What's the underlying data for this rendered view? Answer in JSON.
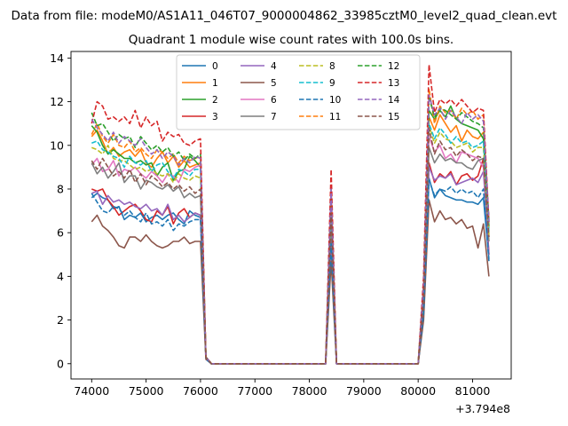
{
  "figure": {
    "suptitle": "Data from file: modeM0/AS1A11_046T07_9000004862_33985cztM0_level2_quad_clean.evt"
  },
  "chart_data": {
    "type": "line",
    "title": "Quadrant 1 module wise count rates with 100.0s bins.",
    "xlabel": "",
    "ylabel": "",
    "x_offset_label": "+3.794e8",
    "xlim": [
      73620,
      81710
    ],
    "ylim": [
      -0.7,
      14.3
    ],
    "xticks": [
      74000,
      75000,
      76000,
      77000,
      78000,
      79000,
      80000,
      81000
    ],
    "yticks": [
      0,
      2,
      4,
      6,
      8,
      10,
      12,
      14
    ],
    "legend_position": "upper center",
    "legend_columns": 4,
    "grid": false,
    "x": [
      74000,
      74100,
      74200,
      74300,
      74400,
      74500,
      74600,
      74700,
      74800,
      74900,
      75000,
      75100,
      75200,
      75300,
      75400,
      75500,
      75600,
      75700,
      75800,
      75900,
      76000,
      76100,
      76200,
      76300,
      78200,
      78300,
      78400,
      78500,
      80000,
      80100,
      80200,
      80300,
      80400,
      80500,
      80600,
      80700,
      80800,
      80900,
      81000,
      81100,
      81200,
      81300
    ],
    "series": [
      {
        "name": "0",
        "color": "#1f77b4",
        "style": "solid",
        "values": [
          7.6,
          7.8,
          7.6,
          7.5,
          7.1,
          7.2,
          6.6,
          6.8,
          6.7,
          6.9,
          6.5,
          6.7,
          6.8,
          6.6,
          6.8,
          6.9,
          6.6,
          6.4,
          7.0,
          6.8,
          6.7,
          0.3,
          0.0,
          0.0,
          0.0,
          0.0,
          5.8,
          0.0,
          0.0,
          2.4,
          8.5,
          7.6,
          8.0,
          7.7,
          7.6,
          7.5,
          7.5,
          7.4,
          7.4,
          7.3,
          7.6,
          4.8
        ]
      },
      {
        "name": "1",
        "color": "#ff7f0e",
        "style": "solid",
        "values": [
          10.4,
          10.7,
          10.2,
          9.6,
          9.9,
          9.5,
          9.7,
          9.8,
          9.5,
          9.8,
          9.2,
          9.0,
          9.4,
          9.7,
          9.2,
          9.5,
          9.0,
          9.3,
          9.0,
          9.1,
          9.2,
          0.3,
          0.0,
          0.0,
          0.0,
          0.0,
          7.4,
          0.0,
          0.0,
          3.4,
          11.3,
          10.7,
          11.4,
          11.0,
          10.6,
          10.9,
          10.2,
          10.7,
          10.4,
          10.3,
          10.6,
          6.2
        ]
      },
      {
        "name": "2",
        "color": "#2ca02c",
        "style": "solid",
        "values": [
          10.9,
          10.6,
          10.0,
          9.6,
          9.8,
          9.6,
          9.4,
          9.4,
          9.2,
          9.3,
          9.1,
          9.2,
          8.6,
          9.0,
          9.2,
          8.4,
          8.8,
          8.9,
          9.5,
          9.3,
          9.0,
          0.3,
          0.0,
          0.0,
          0.0,
          0.0,
          7.6,
          0.0,
          0.0,
          3.5,
          11.6,
          11.2,
          11.6,
          11.3,
          11.8,
          11.2,
          11.0,
          10.9,
          10.8,
          10.7,
          10.3,
          6.3
        ]
      },
      {
        "name": "3",
        "color": "#d62728",
        "style": "solid",
        "values": [
          8.0,
          7.9,
          8.0,
          7.5,
          7.2,
          6.8,
          7.0,
          7.2,
          7.3,
          7.0,
          6.6,
          6.5,
          7.0,
          6.8,
          7.2,
          6.4,
          6.9,
          7.1,
          6.7,
          6.9,
          6.8,
          0.3,
          0.0,
          0.0,
          0.0,
          0.0,
          5.9,
          0.0,
          0.0,
          2.6,
          9.2,
          8.3,
          8.7,
          8.5,
          8.8,
          8.2,
          8.6,
          8.7,
          8.4,
          8.6,
          9.4,
          5.0
        ]
      },
      {
        "name": "4",
        "color": "#9467bd",
        "style": "solid",
        "values": [
          7.8,
          7.9,
          7.3,
          7.7,
          7.4,
          7.5,
          7.3,
          7.4,
          7.2,
          7.1,
          7.3,
          7.0,
          7.1,
          6.8,
          7.3,
          6.6,
          6.8,
          6.5,
          6.7,
          6.9,
          6.8,
          0.3,
          0.0,
          0.0,
          0.0,
          0.0,
          6.0,
          0.0,
          0.0,
          2.6,
          9.0,
          8.4,
          8.6,
          8.5,
          8.7,
          8.2,
          8.3,
          8.4,
          8.5,
          8.3,
          8.8,
          5.0
        ]
      },
      {
        "name": "5",
        "color": "#8c564b",
        "style": "solid",
        "values": [
          6.5,
          6.8,
          6.3,
          6.1,
          5.8,
          5.4,
          5.3,
          5.8,
          5.8,
          5.6,
          5.9,
          5.6,
          5.4,
          5.3,
          5.4,
          5.6,
          5.6,
          5.8,
          5.5,
          5.6,
          5.6,
          0.2,
          0.0,
          0.0,
          0.0,
          0.0,
          4.7,
          0.0,
          0.0,
          2.0,
          7.5,
          6.5,
          7.0,
          6.6,
          6.7,
          6.4,
          6.6,
          6.2,
          6.3,
          5.3,
          6.4,
          4.0
        ]
      },
      {
        "name": "6",
        "color": "#e377c2",
        "style": "solid",
        "values": [
          9.1,
          9.4,
          8.8,
          8.9,
          9.3,
          8.6,
          8.9,
          8.8,
          9.0,
          8.7,
          8.5,
          8.8,
          8.6,
          8.3,
          8.7,
          8.6,
          8.3,
          8.9,
          8.8,
          9.0,
          9.1,
          0.3,
          0.0,
          0.0,
          0.0,
          0.0,
          7.0,
          0.0,
          0.0,
          3.1,
          10.4,
          9.7,
          10.0,
          9.4,
          9.6,
          9.2,
          9.7,
          9.6,
          9.5,
          9.4,
          9.0,
          5.8
        ]
      },
      {
        "name": "7",
        "color": "#7f7f7f",
        "style": "solid",
        "values": [
          9.2,
          8.7,
          9.0,
          8.5,
          8.8,
          9.2,
          8.3,
          8.6,
          8.6,
          8.0,
          8.4,
          8.3,
          8.1,
          8.0,
          8.2,
          7.9,
          8.1,
          7.6,
          7.8,
          7.6,
          7.7,
          0.3,
          0.0,
          0.0,
          0.0,
          0.0,
          6.7,
          0.0,
          0.0,
          2.9,
          9.9,
          9.2,
          9.6,
          9.3,
          9.4,
          9.2,
          9.2,
          9.0,
          8.9,
          9.3,
          9.4,
          5.6
        ]
      },
      {
        "name": "8",
        "color": "#bcbd22",
        "style": "dashed",
        "values": [
          9.9,
          9.8,
          9.6,
          10.0,
          9.4,
          9.3,
          9.3,
          9.1,
          8.9,
          9.0,
          8.8,
          8.9,
          8.7,
          8.6,
          8.7,
          8.3,
          8.7,
          8.5,
          8.4,
          8.6,
          8.5,
          0.3,
          0.0,
          0.0,
          0.0,
          0.0,
          7.2,
          0.0,
          0.0,
          3.2,
          10.9,
          10.1,
          10.6,
          10.3,
          10.2,
          9.9,
          10.0,
          10.1,
          9.7,
          9.9,
          9.9,
          5.9
        ]
      },
      {
        "name": "9",
        "color": "#17becf",
        "style": "dashed",
        "values": [
          10.1,
          10.2,
          9.8,
          9.7,
          9.5,
          9.4,
          9.0,
          9.5,
          9.2,
          9.1,
          9.3,
          8.8,
          9.1,
          9.2,
          8.8,
          8.5,
          8.9,
          8.8,
          8.6,
          8.9,
          8.9,
          0.3,
          0.0,
          0.0,
          0.0,
          0.0,
          7.3,
          0.0,
          0.0,
          3.3,
          11.0,
          10.3,
          10.8,
          10.5,
          10.1,
          10.4,
          10.1,
          10.2,
          9.9,
          10.0,
          10.2,
          6.0
        ]
      },
      {
        "name": "10",
        "color": "#1f77b4",
        "style": "dashed",
        "values": [
          7.8,
          7.4,
          7.0,
          6.9,
          7.2,
          7.1,
          6.8,
          7.0,
          6.7,
          6.5,
          6.9,
          6.4,
          6.5,
          6.3,
          6.6,
          6.1,
          6.4,
          6.3,
          6.5,
          6.6,
          6.6,
          0.2,
          0.0,
          0.0,
          0.0,
          0.0,
          5.5,
          0.0,
          0.0,
          2.3,
          8.4,
          7.7,
          8.0,
          7.9,
          8.1,
          7.8,
          8.0,
          7.8,
          7.9,
          7.6,
          8.0,
          4.7
        ]
      },
      {
        "name": "11",
        "color": "#ff7f0e",
        "style": "dashed",
        "values": [
          10.5,
          11.0,
          10.4,
          10.1,
          10.5,
          10.0,
          9.9,
          10.2,
          9.7,
          9.9,
          9.6,
          9.4,
          9.8,
          9.7,
          9.4,
          9.6,
          9.2,
          9.5,
          9.3,
          9.4,
          9.5,
          0.3,
          0.0,
          0.0,
          0.0,
          0.0,
          7.8,
          0.0,
          0.0,
          3.6,
          12.6,
          11.0,
          11.8,
          11.5,
          11.6,
          11.2,
          11.7,
          11.4,
          11.6,
          11.2,
          11.4,
          6.4
        ]
      },
      {
        "name": "12",
        "color": "#2ca02c",
        "style": "dashed",
        "values": [
          11.5,
          10.9,
          11.0,
          10.6,
          10.2,
          10.5,
          10.3,
          10.4,
          9.9,
          10.4,
          10.1,
          9.8,
          10.0,
          9.7,
          9.9,
          9.5,
          9.7,
          9.3,
          9.6,
          9.4,
          9.6,
          0.3,
          0.0,
          0.0,
          0.0,
          0.0,
          8.0,
          0.0,
          0.0,
          3.7,
          12.2,
          11.3,
          11.7,
          11.6,
          11.4,
          11.2,
          11.5,
          11.3,
          11.1,
          11.0,
          10.8,
          6.6
        ]
      },
      {
        "name": "13",
        "color": "#d62728",
        "style": "dashed",
        "values": [
          11.0,
          12.0,
          11.8,
          11.2,
          11.3,
          11.1,
          11.3,
          11.0,
          11.6,
          10.8,
          11.3,
          10.9,
          11.1,
          10.2,
          10.6,
          10.4,
          10.5,
          10.1,
          10.0,
          10.2,
          10.3,
          0.3,
          0.0,
          0.0,
          0.0,
          0.0,
          8.9,
          0.0,
          0.0,
          4.0,
          13.7,
          11.5,
          12.1,
          11.9,
          12.1,
          11.8,
          12.1,
          11.8,
          11.5,
          11.7,
          11.6,
          6.5
        ]
      },
      {
        "name": "14",
        "color": "#9467bd",
        "style": "dashed",
        "values": [
          11.2,
          10.8,
          10.5,
          10.2,
          10.6,
          10.1,
          10.4,
          10.2,
          10.0,
          10.3,
          9.9,
          9.6,
          9.8,
          9.4,
          9.7,
          9.5,
          9.1,
          9.4,
          9.2,
          9.5,
          9.4,
          0.3,
          0.0,
          0.0,
          0.0,
          0.0,
          8.0,
          0.0,
          0.0,
          3.6,
          12.3,
          11.4,
          11.7,
          11.2,
          11.6,
          11.3,
          11.0,
          11.5,
          11.2,
          11.4,
          11.1,
          6.5
        ]
      },
      {
        "name": "15",
        "color": "#8c564b",
        "style": "dashed",
        "values": [
          9.3,
          8.9,
          9.4,
          9.0,
          8.6,
          8.8,
          8.5,
          8.9,
          8.3,
          8.7,
          8.2,
          8.6,
          8.4,
          8.1,
          8.3,
          8.0,
          8.2,
          7.9,
          8.1,
          7.8,
          8.0,
          0.3,
          0.0,
          0.0,
          0.0,
          0.0,
          6.9,
          0.0,
          0.0,
          3.0,
          10.8,
          9.6,
          10.2,
          9.8,
          9.9,
          9.5,
          9.8,
          9.6,
          9.3,
          9.5,
          9.4,
          5.8
        ]
      }
    ]
  }
}
